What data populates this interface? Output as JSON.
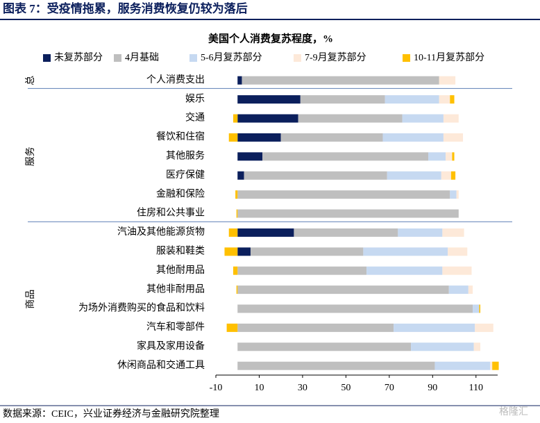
{
  "header": {
    "title": "图表 7：受疫情拖累，服务消费恢复仍较为落后"
  },
  "chart_data": {
    "type": "stacked_barh",
    "title": "美国个人消费复苏程度，%",
    "groups": [
      {
        "name": "总",
        "categories": [
          "个人消费支出"
        ]
      },
      {
        "name": "服务",
        "categories": [
          "娱乐",
          "交通",
          "餐饮和住宿",
          "其他服务",
          "医疗保健",
          "金融和保险",
          "住房和公共事业"
        ]
      },
      {
        "name": "商品",
        "categories": [
          "汽油及其他能源货物",
          "服装和鞋类",
          "其他耐用品",
          "其他非耐用品",
          "为场外消费购买的食品和饮料",
          "汽车和零部件",
          "家具及家用设备",
          "休闲商品和交通工具"
        ]
      }
    ],
    "series": [
      {
        "name": "未复苏部分",
        "color": "#0b1f5c",
        "values": [
          2,
          29,
          28,
          20,
          11.5,
          3,
          0,
          0,
          26,
          6,
          0,
          0,
          0,
          0,
          0,
          0
        ]
      },
      {
        "name": "4月基础",
        "color": "#bfbfbf",
        "values": [
          91,
          39,
          48,
          47,
          76.5,
          66,
          98,
          102,
          48,
          52,
          59.5,
          97.5,
          108.5,
          72,
          80,
          91
        ]
      },
      {
        "name": "5-6月复苏部分",
        "color": "#c6d9f1",
        "values": [
          0,
          25,
          19,
          28,
          8,
          25,
          3,
          0,
          20.5,
          39,
          35,
          9,
          3,
          37.5,
          29,
          25.5
        ]
      },
      {
        "name": "7-9月复苏部分",
        "color": "#fde9d9",
        "values": [
          7.5,
          5,
          7,
          9,
          3,
          4.5,
          1,
          0,
          10,
          9,
          13.5,
          2,
          0,
          8.5,
          3,
          1
        ]
      },
      {
        "name": "10-11月复苏部分",
        "color": "#ffc000",
        "values": [
          0,
          2,
          -2,
          -4,
          1,
          2,
          -1,
          -0.5,
          -4,
          -6,
          -2,
          -0.5,
          0.5,
          -5,
          0,
          3
        ]
      }
    ],
    "xlim": [
      -10,
      120
    ],
    "xticks": [
      -10,
      10,
      30,
      50,
      70,
      90,
      110
    ]
  },
  "footer": {
    "source": "数据来源：CEIC，兴业证券经济与金融研究院整理",
    "watermark": "格隆汇"
  }
}
